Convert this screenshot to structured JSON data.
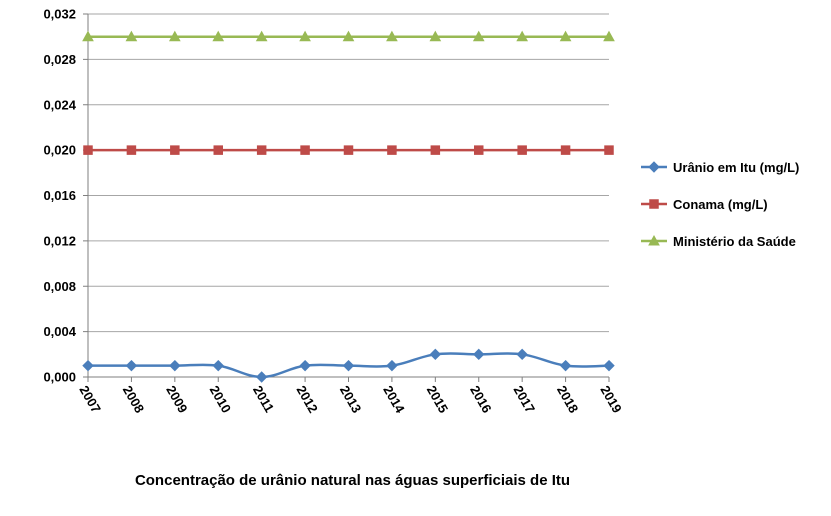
{
  "chart_data": {
    "type": "line",
    "title": "Concentração de urânio natural nas águas superficiais de Itu",
    "xlabel": "",
    "ylabel": "",
    "categories": [
      "2007",
      "2008",
      "2009",
      "2010",
      "2011",
      "2012",
      "2013",
      "2014",
      "2015",
      "2016",
      "2017",
      "2018",
      "2019"
    ],
    "ylim": [
      0,
      0.032
    ],
    "yticks": [
      "0,000",
      "0,004",
      "0,008",
      "0,012",
      "0,016",
      "0,020",
      "0,024",
      "0,028",
      "0,032"
    ],
    "grid": true,
    "legend_position": "right",
    "series": [
      {
        "name": "Urânio em Itu (mg/L)",
        "color": "#4a7ebb",
        "marker": "diamond",
        "values": [
          0.001,
          0.001,
          0.001,
          0.001,
          0.0,
          0.001,
          0.001,
          0.001,
          0.002,
          0.002,
          0.002,
          0.001,
          0.001
        ]
      },
      {
        "name": "Conama (mg/L)",
        "color": "#be4b48",
        "marker": "square",
        "values": [
          0.02,
          0.02,
          0.02,
          0.02,
          0.02,
          0.02,
          0.02,
          0.02,
          0.02,
          0.02,
          0.02,
          0.02,
          0.02
        ]
      },
      {
        "name": "Ministério da Saúde",
        "color": "#98b954",
        "marker": "triangle",
        "values": [
          0.03,
          0.03,
          0.03,
          0.03,
          0.03,
          0.03,
          0.03,
          0.03,
          0.03,
          0.03,
          0.03,
          0.03,
          0.03
        ]
      }
    ]
  }
}
